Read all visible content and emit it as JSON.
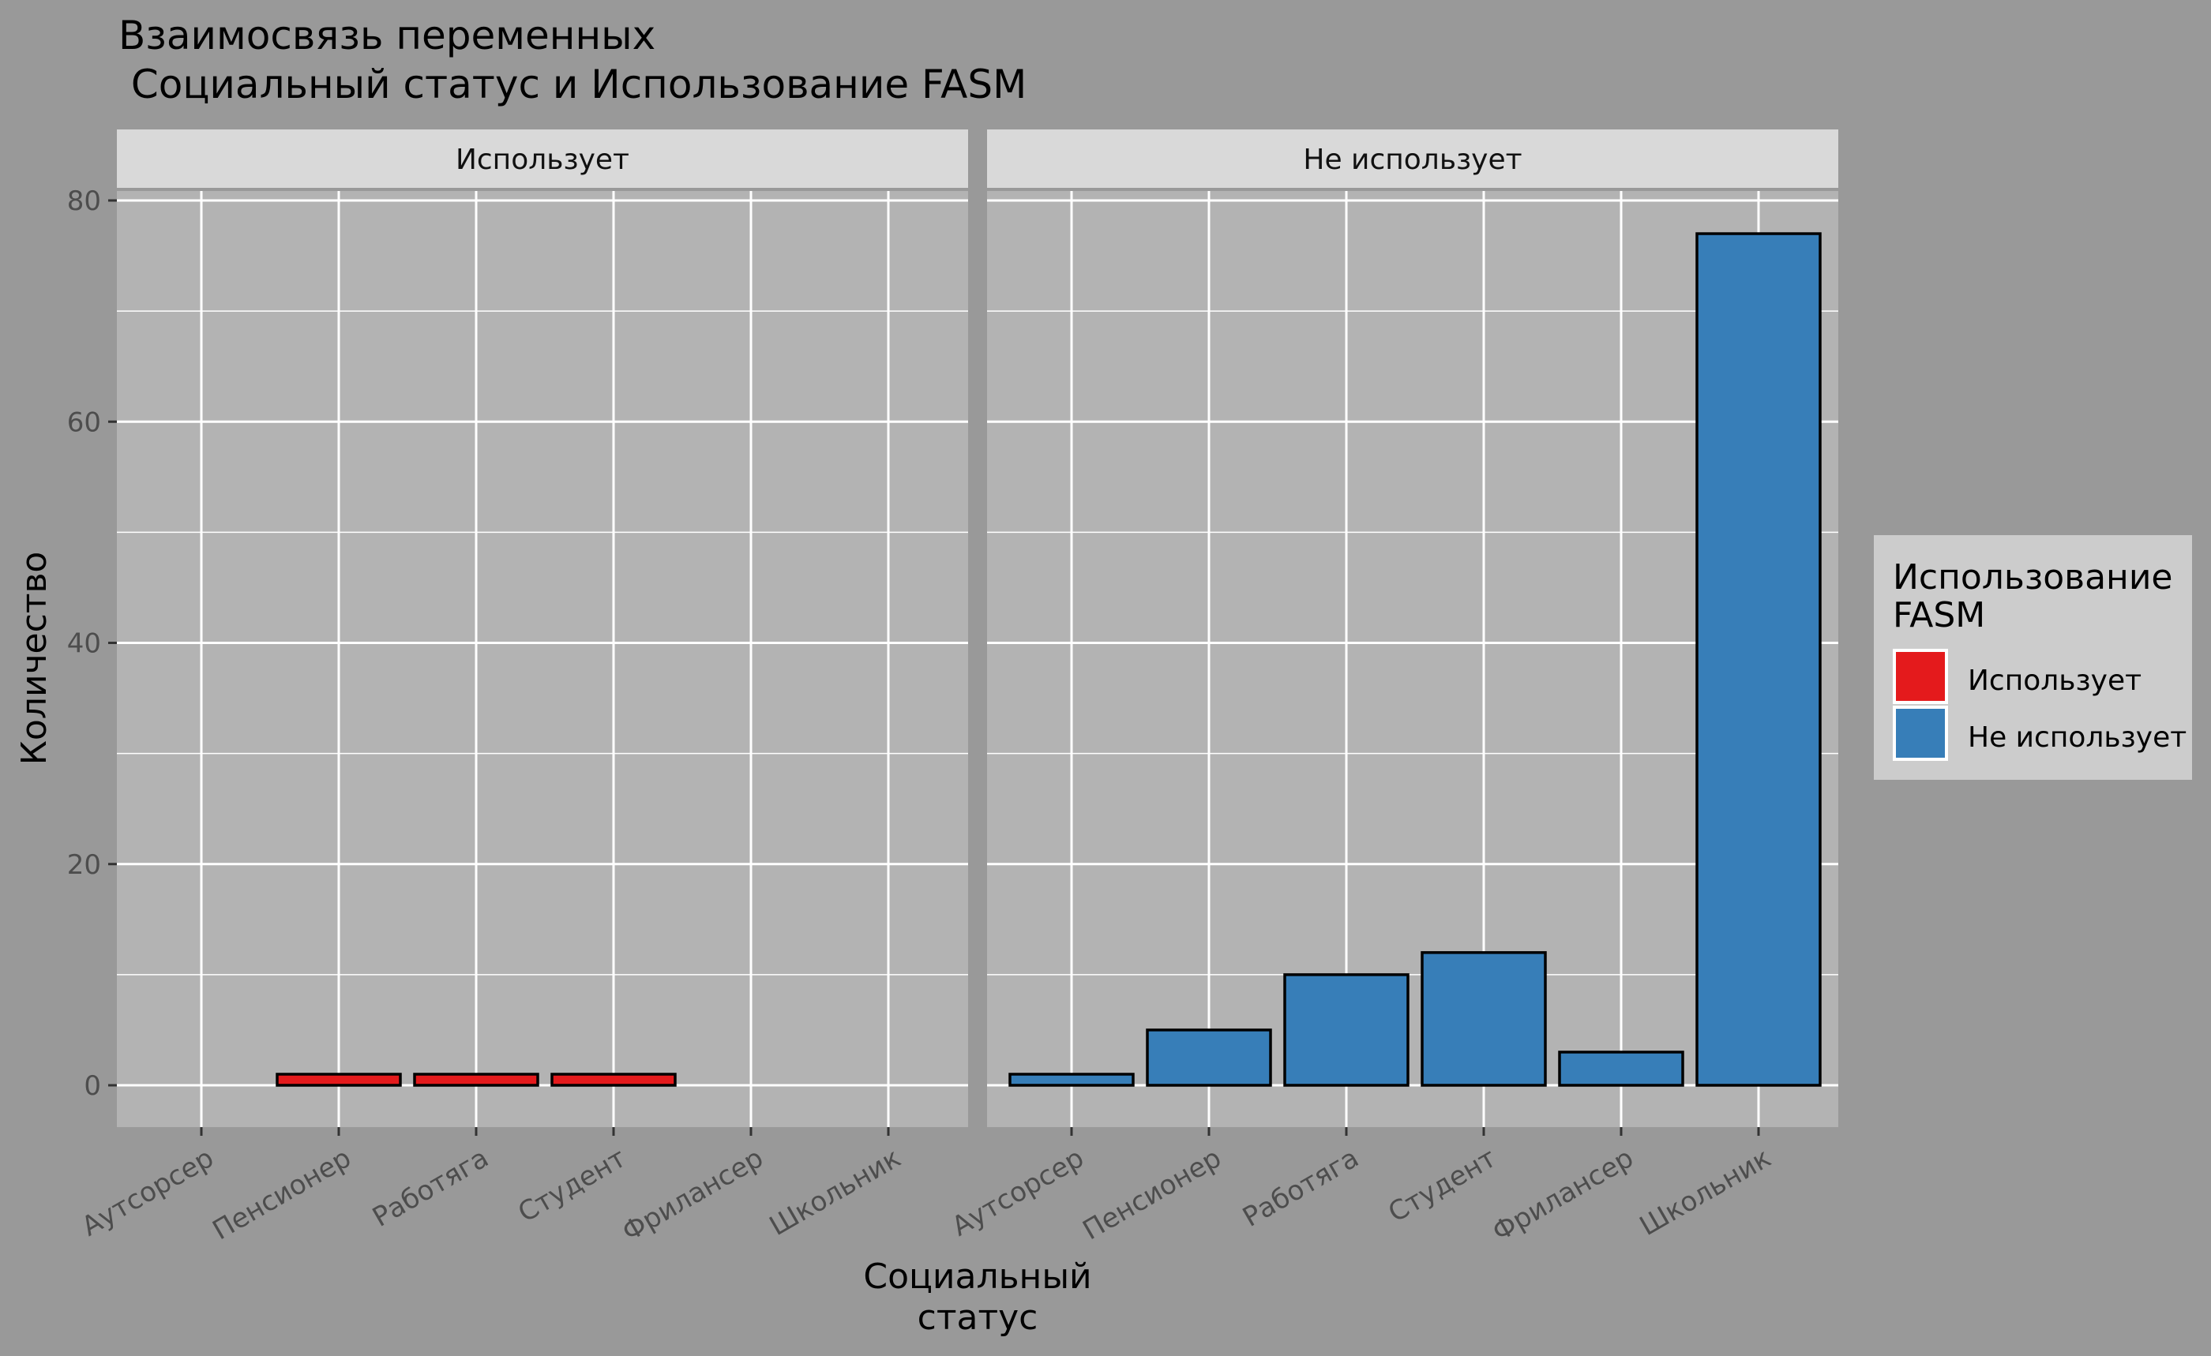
{
  "chart_data": {
    "type": "bar",
    "title_lines": [
      "Взаимосвязь переменных",
      " Социальный статус и Использование FASM"
    ],
    "xlabel_lines": [
      "Социальный",
      "статус"
    ],
    "ylabel": "Количество",
    "ylim": [
      0,
      80
    ],
    "yticks": [
      0,
      20,
      40,
      60,
      80
    ],
    "categories": [
      "Аутсорсер",
      "Пенсионер",
      "Работяга",
      "Студент",
      "Фрилансер",
      "Школьник"
    ],
    "facets": [
      {
        "label": "Использует",
        "series": "Использует"
      },
      {
        "label": "Не использует",
        "series": "Не использует"
      }
    ],
    "series": [
      {
        "name": "Использует",
        "color": "#E41A1C",
        "values": [
          0,
          1,
          1,
          1,
          0,
          0
        ]
      },
      {
        "name": "Не использует",
        "color": "#377EB8",
        "values": [
          1,
          5,
          10,
          12,
          3,
          77
        ]
      }
    ],
    "legend": {
      "title_lines": [
        "Использование",
        "FASM"
      ],
      "placement": "right",
      "items": [
        {
          "label": "Использует",
          "color": "#E41A1C"
        },
        {
          "label": "Не использует",
          "color": "#377EB8"
        }
      ]
    },
    "grid": true
  },
  "colors": {
    "background": "#999999",
    "panel": "#B3B3B3",
    "strip": "#D9D9D9",
    "legend_bg": "#CCCCCC",
    "gridline": "#FFFFFF"
  }
}
